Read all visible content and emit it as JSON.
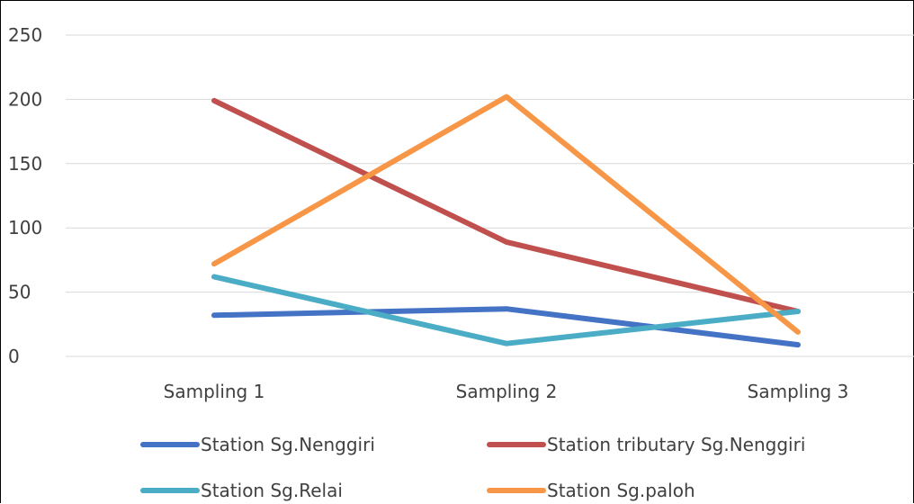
{
  "chart_data": {
    "type": "line",
    "title": "",
    "xlabel": "",
    "ylabel": "",
    "categories": [
      "Sampling 1",
      "Sampling 2",
      "Sampling 3"
    ],
    "ylim": [
      0,
      250
    ],
    "yticks": [
      "0",
      "50",
      "100",
      "150",
      "200",
      "250"
    ],
    "grid": true,
    "legend_position": "bottom",
    "series": [
      {
        "name": "Station Sg.Nenggiri",
        "values": [
          32,
          37,
          9
        ],
        "color": "#4472C4"
      },
      {
        "name": "Station tributary Sg.Nenggiri",
        "values": [
          199,
          89,
          35
        ],
        "color": "#C0504D"
      },
      {
        "name": "Station Sg.Relai",
        "values": [
          62,
          10,
          35
        ],
        "color": "#4BACC6"
      },
      {
        "name": "Station Sg.paloh",
        "values": [
          72,
          202,
          19
        ],
        "color": "#F79646"
      }
    ]
  }
}
